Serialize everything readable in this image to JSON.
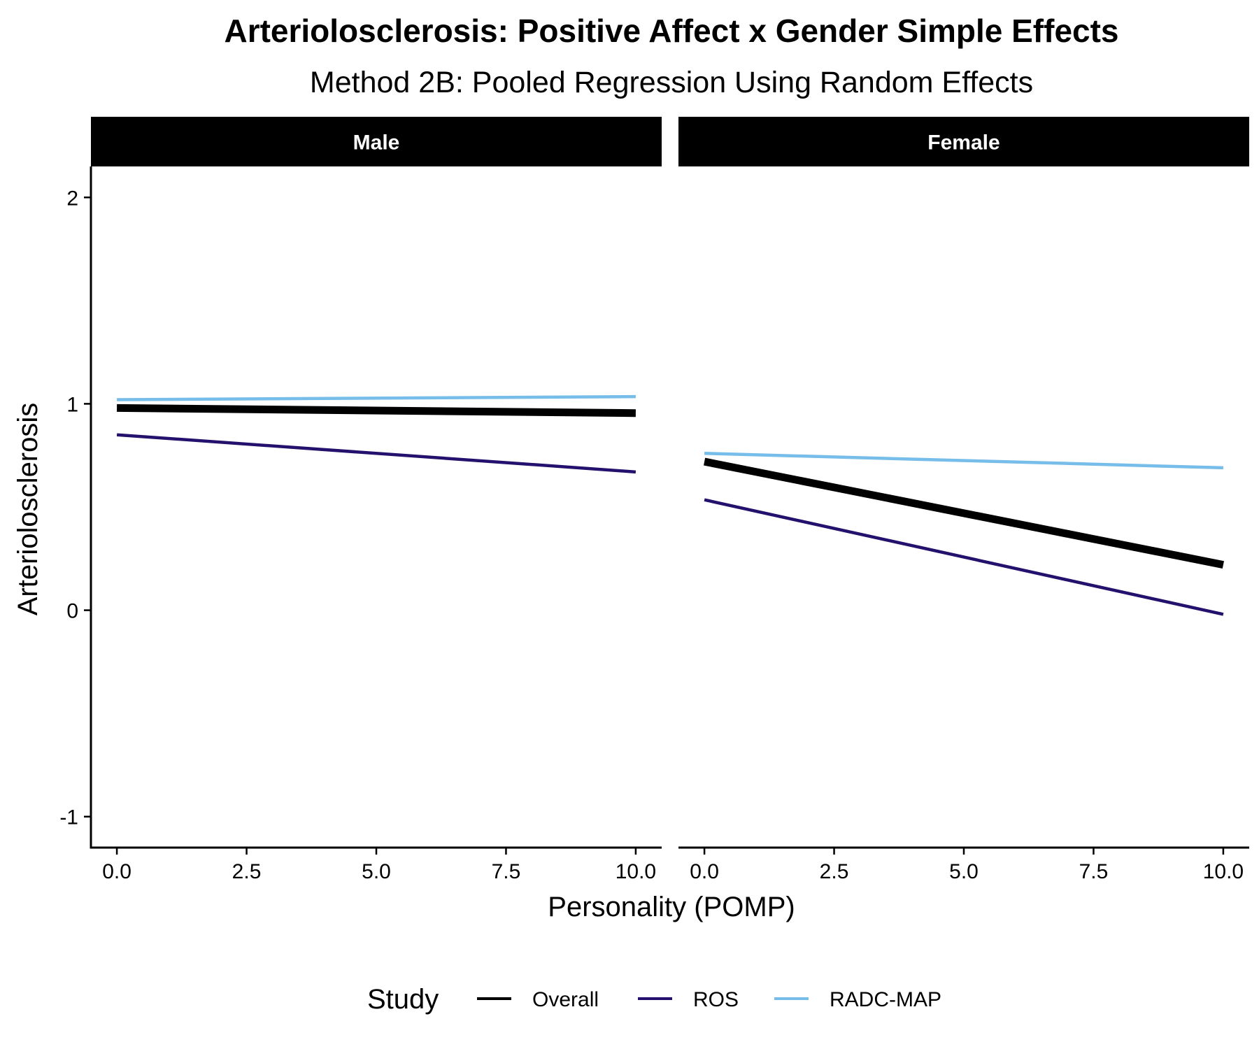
{
  "chart_data": {
    "type": "line",
    "title": "Arteriolosclerosis: Positive Affect x Gender Simple Effects",
    "subtitle": "Method 2B: Pooled Regression Using Random Effects",
    "xlabel": "Personality (POMP)",
    "ylabel": "Arteriolosclerosis",
    "xlim": [
      -0.5,
      10.5
    ],
    "ylim": [
      -1.15,
      2.15
    ],
    "x_ticks": [
      0,
      2.5,
      5,
      7.5,
      10
    ],
    "x_tick_labels": [
      "0.0",
      "2.5",
      "5.0",
      "7.5",
      "10.0"
    ],
    "y_ticks": [
      -1,
      0,
      1,
      2
    ],
    "y_tick_labels": [
      "-1",
      "0",
      "1",
      "2"
    ],
    "grid": false,
    "legend": {
      "title": "Study",
      "placement": "bottom",
      "entries": [
        "Overall",
        "ROS",
        "RADC-MAP"
      ]
    },
    "series_styles": {
      "Overall": {
        "color": "#000000"
      },
      "ROS": {
        "color": "#24116d"
      },
      "RADC-MAP": {
        "color": "#77bde9"
      }
    },
    "panels": [
      {
        "label": "Male",
        "x": [
          0,
          10
        ],
        "series": [
          {
            "name": "Overall",
            "values": [
              0.98,
              0.955
            ]
          },
          {
            "name": "ROS",
            "values": [
              0.85,
              0.67
            ]
          },
          {
            "name": "RADC-MAP",
            "values": [
              1.02,
              1.035
            ]
          }
        ]
      },
      {
        "label": "Female",
        "x": [
          0,
          10
        ],
        "series": [
          {
            "name": "Overall",
            "values": [
              0.72,
              0.22
            ]
          },
          {
            "name": "ROS",
            "values": [
              0.535,
              -0.02
            ]
          },
          {
            "name": "RADC-MAP",
            "values": [
              0.76,
              0.69
            ]
          }
        ]
      }
    ]
  }
}
